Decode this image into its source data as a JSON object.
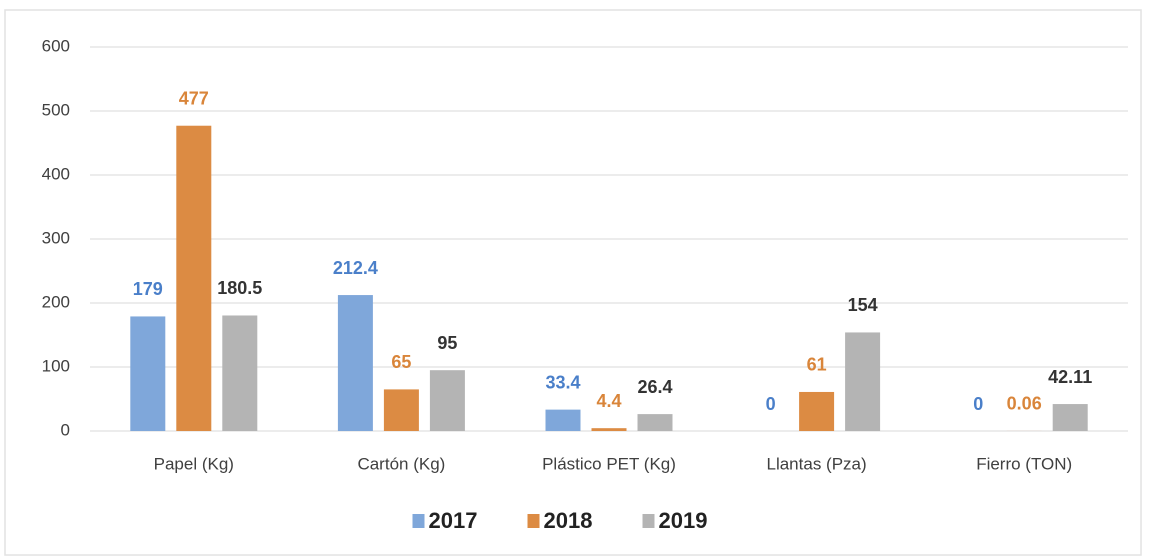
{
  "chart_data": {
    "type": "bar",
    "categories": [
      "Papel (Kg)",
      "Cartón (Kg)",
      "Plástico PET (Kg)",
      "Llantas (Pza)",
      "Fierro (TON)"
    ],
    "series": [
      {
        "name": "2017",
        "color": "#7fa7da",
        "values": [
          179,
          212.4,
          33.4,
          0,
          0
        ]
      },
      {
        "name": "2018",
        "color": "#dc8b43",
        "values": [
          477,
          65,
          4.4,
          61,
          0.06
        ]
      },
      {
        "name": "2019",
        "color": "#b4b4b4",
        "values": [
          180.5,
          95,
          26.4,
          154,
          42.11
        ]
      }
    ],
    "ylim": [
      0,
      600
    ],
    "yticks": [
      0,
      100,
      200,
      300,
      400,
      500,
      600
    ],
    "grid": true,
    "legend": "bottom"
  }
}
